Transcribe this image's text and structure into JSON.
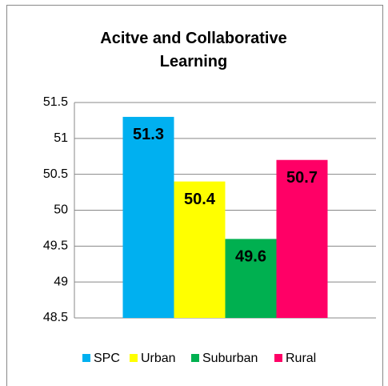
{
  "chart_data": {
    "type": "bar",
    "title": "Acitve and Collaborative Learning",
    "series": [
      {
        "name": "SPC",
        "color": "#00b0f0",
        "values": [
          51.3
        ]
      },
      {
        "name": "Urban",
        "color": "#ffff00",
        "values": [
          50.4
        ]
      },
      {
        "name": "Suburban",
        "color": "#00b050",
        "values": [
          49.6
        ]
      },
      {
        "name": "Rural",
        "color": "#ff0066",
        "values": [
          50.7
        ]
      }
    ],
    "ylim": [
      48.5,
      51.5
    ],
    "yticks": [
      48.5,
      49,
      49.5,
      50,
      50.5,
      51,
      51.5
    ],
    "grid": true,
    "legend": "bottom"
  }
}
